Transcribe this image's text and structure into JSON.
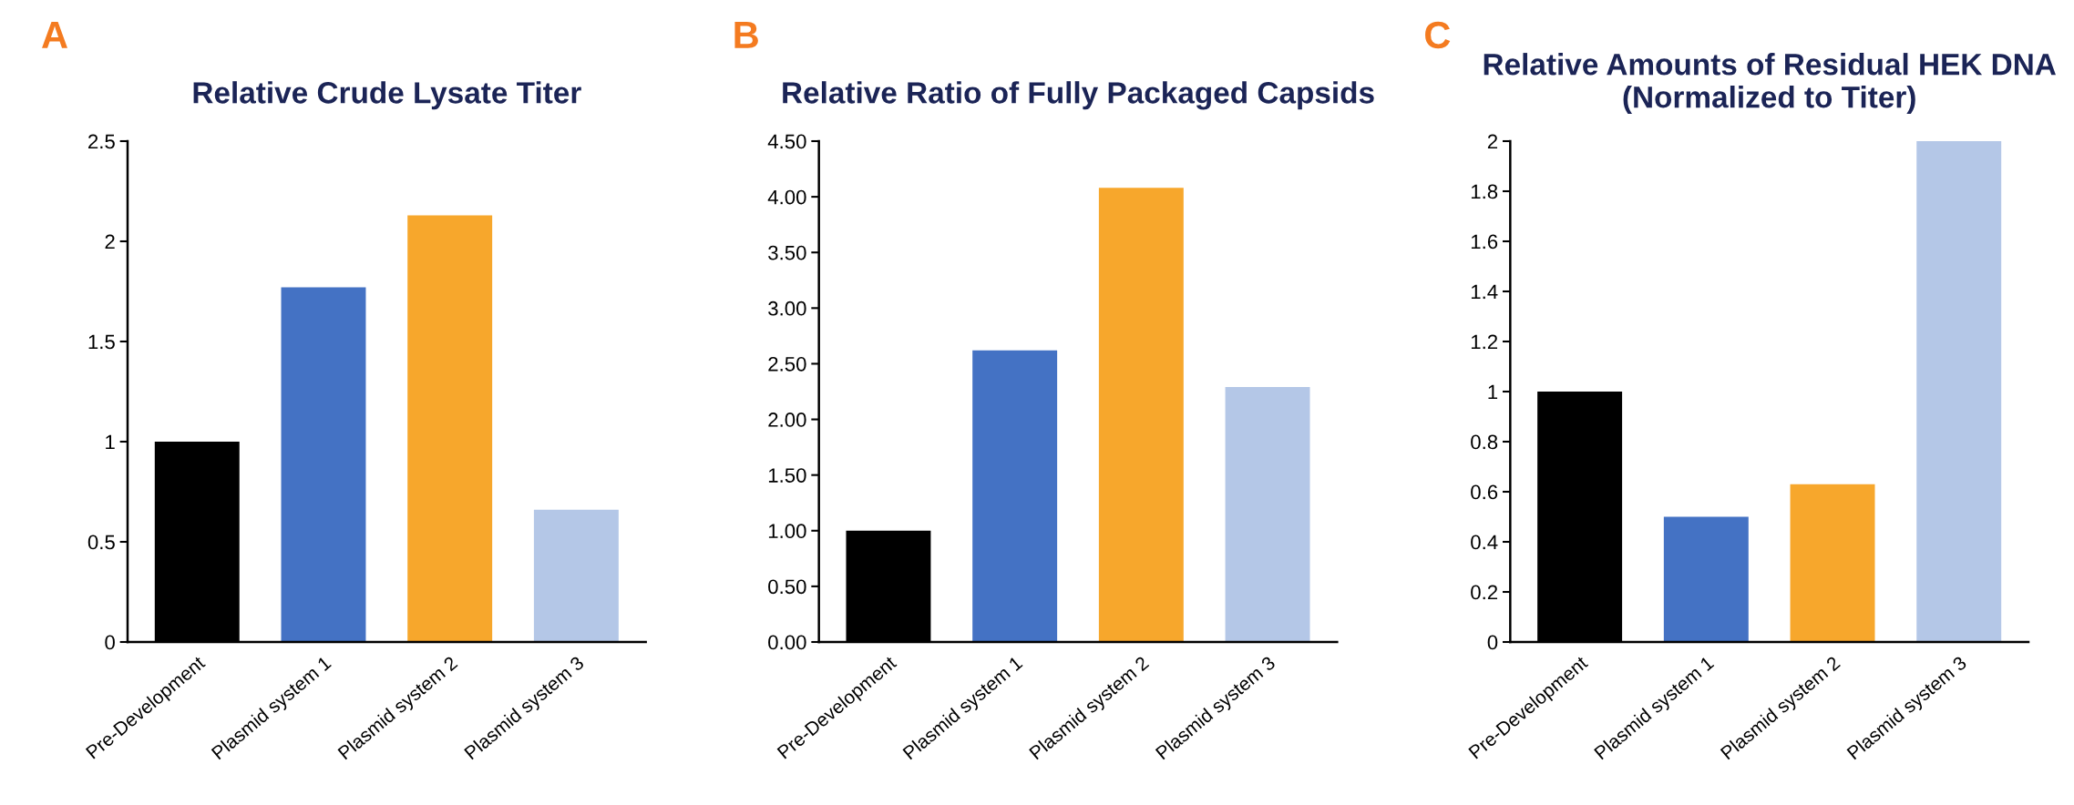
{
  "chart_data": [
    {
      "type": "bar",
      "title": "Relative Crude Lysate Titer",
      "annotations": [
        "A"
      ],
      "categories": [
        "Pre-Development",
        "Plasmid system 1",
        "Plasmid system 2",
        "Plasmid system 3"
      ],
      "values": [
        1.0,
        1.77,
        2.13,
        0.66
      ],
      "colors": [
        "#000000",
        "#4472c4",
        "#f7a72c",
        "#b4c7e7"
      ],
      "ylim": [
        0,
        2.5
      ],
      "yticks": [
        0,
        0.5,
        1,
        1.5,
        2,
        2.5
      ]
    },
    {
      "type": "bar",
      "title": "Relative Ratio of Fully Packaged Capsids",
      "annotations": [
        "B"
      ],
      "categories": [
        "Pre-Development",
        "Plasmid system 1",
        "Plasmid system 2",
        "Plasmid system 3"
      ],
      "values": [
        1.0,
        2.62,
        4.08,
        2.29
      ],
      "colors": [
        "#000000",
        "#4472c4",
        "#f7a72c",
        "#b4c7e7"
      ],
      "ylim": [
        0,
        4.5
      ],
      "yticks": [
        {
          "value": 0,
          "label": "0.00"
        },
        {
          "value": 0.5,
          "label": "0.50"
        },
        {
          "value": 1,
          "label": "1.00"
        },
        {
          "value": 1.5,
          "label": "1.50"
        },
        {
          "value": 2,
          "label": "2.00"
        },
        {
          "value": 2.5,
          "label": "2.50"
        },
        {
          "value": 3,
          "label": "3.00"
        },
        {
          "value": 3.5,
          "label": "3.50"
        },
        {
          "value": 4,
          "label": "4.00"
        },
        {
          "value": 4.5,
          "label": "4.50"
        }
      ]
    },
    {
      "type": "bar",
      "title": "Relative Amounts of Residual HEK DNA (Normalized to Titer)",
      "annotations": [
        "C"
      ],
      "categories": [
        "Pre-Development",
        "Plasmid system 1",
        "Plasmid system 2",
        "Plasmid system 3"
      ],
      "values": [
        1.0,
        0.5,
        0.63,
        2.0
      ],
      "colors": [
        "#000000",
        "#4472c4",
        "#f7a72c",
        "#b4c7e7"
      ],
      "ylim": [
        0,
        2
      ],
      "yticks": [
        0,
        0.2,
        0.4,
        0.6,
        0.8,
        1,
        1.2,
        1.4,
        1.6,
        1.8,
        2
      ]
    }
  ]
}
